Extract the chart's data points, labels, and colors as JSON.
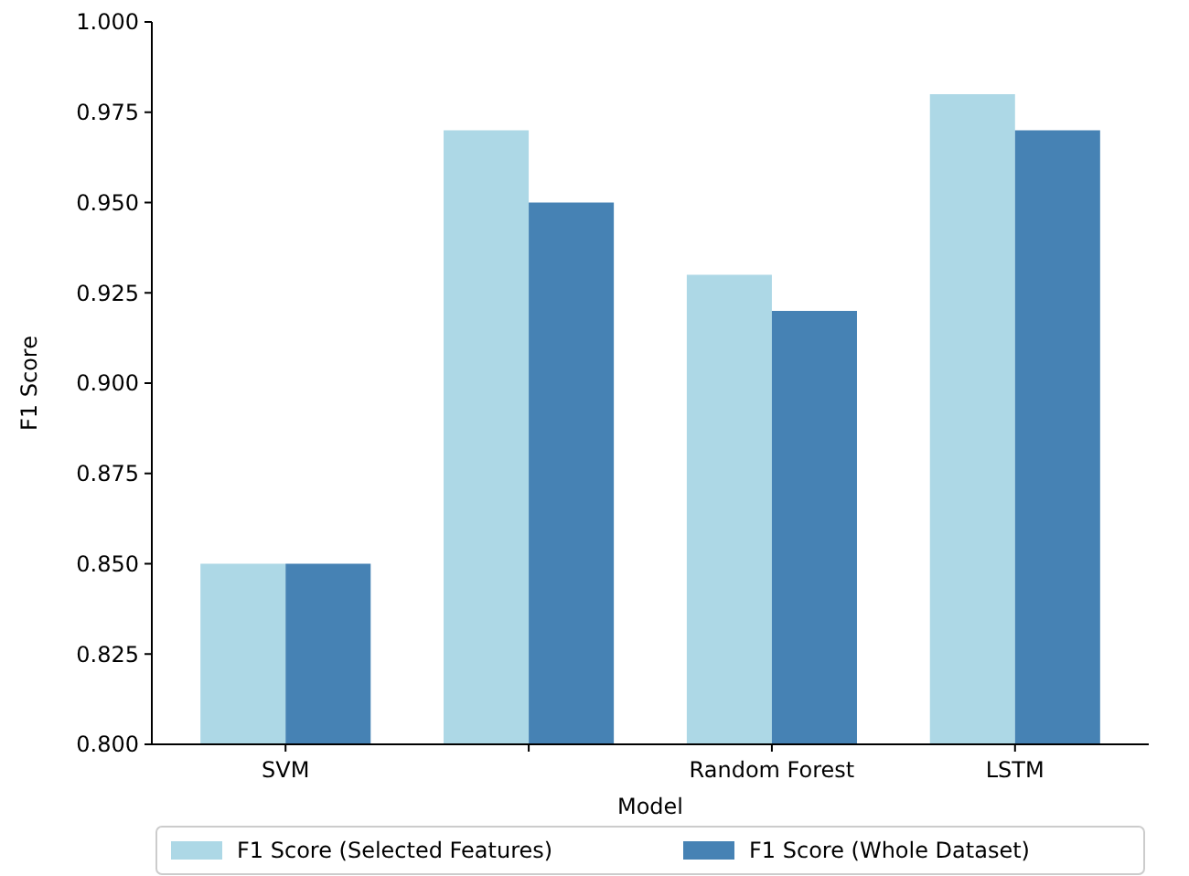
{
  "chart_data": {
    "type": "bar",
    "xlabel": "Model",
    "ylabel": "F1 Score",
    "categories": [
      "SVM",
      null,
      "Random Forest",
      "LSTM"
    ],
    "series": [
      {
        "name": "F1 Score (Selected Features)",
        "color": "#add8e6",
        "values": [
          0.85,
          0.97,
          0.93,
          0.98
        ]
      },
      {
        "name": "F1 Score (Whole Dataset)",
        "color": "#4682b4",
        "values": [
          0.85,
          0.95,
          0.92,
          0.97
        ]
      }
    ],
    "ylim": [
      0.8,
      1.0
    ],
    "yticks": [
      {
        "value": 0.8,
        "label": "0.800"
      },
      {
        "value": 0.825,
        "label": "0.825"
      },
      {
        "value": 0.85,
        "label": "0.850"
      },
      {
        "value": 0.875,
        "label": "0.875"
      },
      {
        "value": 0.9,
        "label": "0.900"
      },
      {
        "value": 0.925,
        "label": "0.925"
      },
      {
        "value": 0.95,
        "label": "0.950"
      },
      {
        "value": 0.975,
        "label": "0.975"
      },
      {
        "value": 1.0,
        "label": "1.000"
      }
    ],
    "grid": false,
    "legend": "bottom"
  }
}
